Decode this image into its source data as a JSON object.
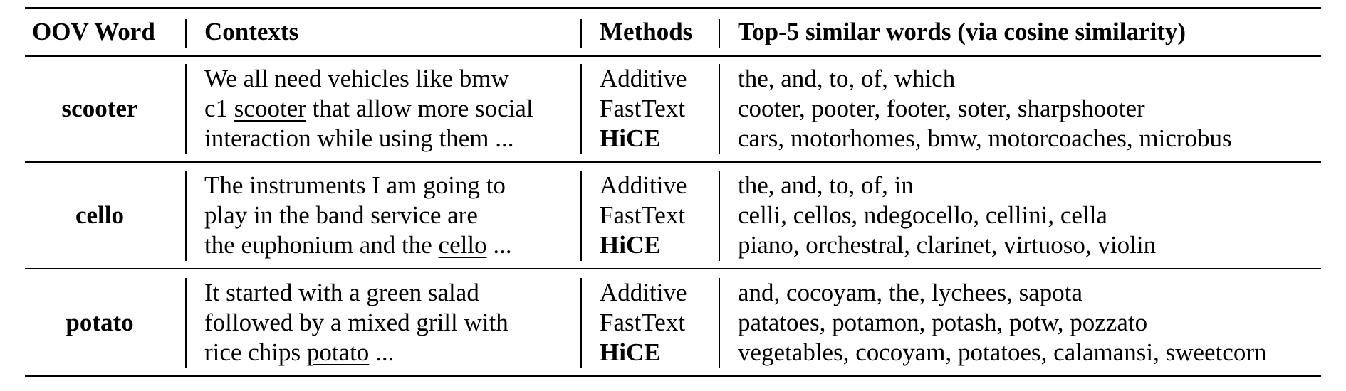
{
  "header": {
    "col_word": "OOV Word",
    "col_context": "Contexts",
    "col_method": "Methods",
    "col_similar": "Top-5 similar words (via cosine similarity)"
  },
  "rows": [
    {
      "word": "scooter",
      "context_lines": [
        {
          "pre": "We all need vehicles like bmw",
          "u": "",
          "post": ""
        },
        {
          "pre": "c1 ",
          "u": "scooter",
          "post": " that allow more social"
        },
        {
          "pre": "interaction while using them ...",
          "u": "",
          "post": ""
        }
      ],
      "methods": [
        "Additive",
        "FastText",
        "HiCE"
      ],
      "similar": [
        "the, and, to, of, which",
        "cooter, pooter, footer, soter, sharpshooter",
        "cars, motorhomes, bmw, motorcoaches, microbus"
      ]
    },
    {
      "word": "cello",
      "context_lines": [
        {
          "pre": "The instruments I am going to",
          "u": "",
          "post": ""
        },
        {
          "pre": "play in the band service are",
          "u": "",
          "post": ""
        },
        {
          "pre": "the euphonium and the ",
          "u": "cello",
          "post": " ..."
        }
      ],
      "methods": [
        "Additive",
        "FastText",
        "HiCE"
      ],
      "similar": [
        "the, and, to, of, in",
        "celli, cellos, ndegocello, cellini, cella",
        "piano, orchestral, clarinet, virtuoso, violin"
      ]
    },
    {
      "word": "potato",
      "context_lines": [
        {
          "pre": "It started with a green salad",
          "u": "",
          "post": ""
        },
        {
          "pre": "followed by a mixed grill with",
          "u": "",
          "post": ""
        },
        {
          "pre": "rice chips ",
          "u": "potato",
          "post": " ..."
        }
      ],
      "methods": [
        "Additive",
        "FastText",
        "HiCE"
      ],
      "similar": [
        "and, cocoyam, the, lychees, sapota",
        "patatoes, potamon, potash, potw, pozzato",
        "vegetables, cocoyam, potatoes, calamansi, sweetcorn"
      ]
    }
  ]
}
